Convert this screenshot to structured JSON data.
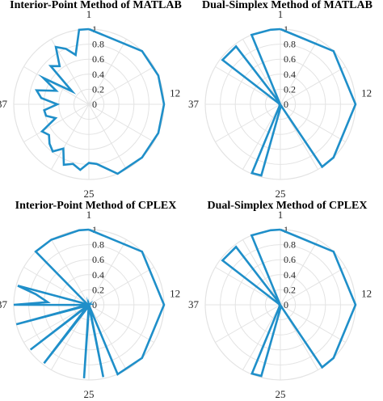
{
  "colors": {
    "line": "#1f8fc9",
    "grid": "#e3e3e3",
    "outer_ring": "#1f8fc9",
    "text": "#262626"
  },
  "chart_data": [
    {
      "type": "polar-line",
      "title": "Interior-Point Method of MATLAB",
      "theta_direction": "clockwise",
      "theta_zero": "top",
      "n_positions": 48,
      "rlim": [
        0,
        1
      ],
      "radial_ticks": [
        "0",
        "0.2",
        "0.4",
        "0.6",
        "0.8",
        "1"
      ],
      "angular_labels": [
        {
          "position": 1,
          "text": "1"
        },
        {
          "position": 12,
          "text": "12"
        },
        {
          "position": 25,
          "text": "25"
        },
        {
          "position": 37,
          "text": "37"
        }
      ],
      "series": [
        {
          "points": [
            [
              0,
              1
            ],
            [
              6,
              1
            ],
            [
              9,
              1
            ],
            [
              12,
              1
            ],
            [
              15,
              1
            ],
            [
              18,
              1
            ],
            [
              21,
              1
            ],
            [
              23,
              0.8
            ],
            [
              24,
              0.78
            ],
            [
              25,
              0.88
            ],
            [
              26,
              0.82
            ],
            [
              27,
              0.87
            ],
            [
              28,
              0.68
            ],
            [
              29,
              0.79
            ],
            [
              30,
              0.74
            ],
            [
              31,
              0.67
            ],
            [
              32,
              0.72
            ],
            [
              33,
              0.48
            ],
            [
              34,
              0.59
            ],
            [
              35,
              0.6
            ],
            [
              36,
              0.42
            ],
            [
              37,
              0.64
            ],
            [
              38,
              0.72
            ],
            [
              39,
              0.47
            ],
            [
              40,
              0.7
            ],
            [
              41,
              0.28
            ],
            [
              42,
              0.72
            ],
            [
              43,
              0.64
            ],
            [
              44,
              0.88
            ],
            [
              45,
              0.8
            ],
            [
              46,
              0.68
            ],
            [
              47,
              1
            ],
            [
              0,
              1
            ]
          ]
        }
      ],
      "grid": true
    },
    {
      "type": "polar-line",
      "title": "Dual-Simplex Method of MATLAB",
      "theta_direction": "clockwise",
      "theta_zero": "top",
      "n_positions": 48,
      "rlim": [
        0,
        1
      ],
      "radial_ticks": [
        "0",
        "0.2",
        "0.4",
        "0.6",
        "0.8",
        "1"
      ],
      "angular_labels": [
        {
          "position": 1,
          "text": "1"
        },
        {
          "position": 12,
          "text": "12"
        },
        {
          "position": 25,
          "text": "25"
        },
        {
          "position": 37,
          "text": "37"
        }
      ],
      "series": [
        {
          "points": [
            [
              0,
              1
            ],
            [
              6,
              1
            ],
            [
              12,
              1
            ],
            [
              18,
              1
            ],
            [
              19.5,
              1
            ],
            [
              20.5,
              0.02
            ],
            [
              26,
              0.98
            ],
            [
              27,
              0.99
            ],
            [
              28,
              0.02
            ],
            [
              40,
              0.02
            ],
            [
              41,
              0.97
            ],
            [
              43,
              0.97
            ],
            [
              44,
              0.02
            ],
            [
              45,
              1
            ],
            [
              47,
              1
            ],
            [
              0,
              1
            ]
          ]
        }
      ],
      "grid": true
    },
    {
      "type": "polar-line",
      "title": "Interior-Point Method of CPLEX",
      "theta_direction": "clockwise",
      "theta_zero": "top",
      "n_positions": 48,
      "rlim": [
        0,
        1
      ],
      "radial_ticks": [
        "0",
        "0.2",
        "0.4",
        "0.6",
        "0.8",
        "1"
      ],
      "angular_labels": [
        {
          "position": 1,
          "text": "1"
        },
        {
          "position": 12,
          "text": "12"
        },
        {
          "position": 25,
          "text": "25"
        },
        {
          "position": 37,
          "text": "37"
        }
      ],
      "series": [
        {
          "points": [
            [
              0,
              1
            ],
            [
              6,
              1
            ],
            [
              12,
              1
            ],
            [
              18,
              1
            ],
            [
              21,
              1
            ],
            [
              21.5,
              0.02
            ],
            [
              22.5,
              0.98
            ],
            [
              23,
              0.02
            ],
            [
              24.5,
              0.98
            ],
            [
              25,
              0.02
            ],
            [
              29,
              0.98
            ],
            [
              30,
              0.02
            ],
            [
              31,
              0.98
            ],
            [
              32,
              0.02
            ],
            [
              34,
              1
            ],
            [
              35,
              0.02
            ],
            [
              36,
              1
            ],
            [
              36.5,
              0.55
            ],
            [
              37.5,
              0.72
            ],
            [
              38,
              0.98
            ],
            [
              38.5,
              0.02
            ],
            [
              42,
              1
            ],
            [
              44,
              1
            ],
            [
              47,
              1
            ],
            [
              0,
              1
            ]
          ]
        }
      ],
      "grid": true
    },
    {
      "type": "polar-line",
      "title": "Dual-Simplex Method of CPLEX",
      "theta_direction": "clockwise",
      "theta_zero": "top",
      "n_positions": 48,
      "rlim": [
        0,
        1
      ],
      "radial_ticks": [
        "0",
        "0.2",
        "0.4",
        "0.6",
        "0.8",
        "1"
      ],
      "angular_labels": [
        {
          "position": 1,
          "text": "1"
        },
        {
          "position": 12,
          "text": "12"
        },
        {
          "position": 25,
          "text": "25"
        },
        {
          "position": 37,
          "text": "37"
        }
      ],
      "series": [
        {
          "points": [
            [
              0,
              1
            ],
            [
              6,
              1
            ],
            [
              12,
              1
            ],
            [
              18,
              1
            ],
            [
              19.5,
              1
            ],
            [
              20.5,
              0.02
            ],
            [
              26,
              0.98
            ],
            [
              27,
              0.99
            ],
            [
              28,
              0.02
            ],
            [
              40,
              0.02
            ],
            [
              41,
              0.97
            ],
            [
              43,
              0.97
            ],
            [
              44,
              0.02
            ],
            [
              45,
              1
            ],
            [
              47,
              1
            ],
            [
              0,
              1
            ]
          ]
        }
      ],
      "grid": true
    }
  ]
}
